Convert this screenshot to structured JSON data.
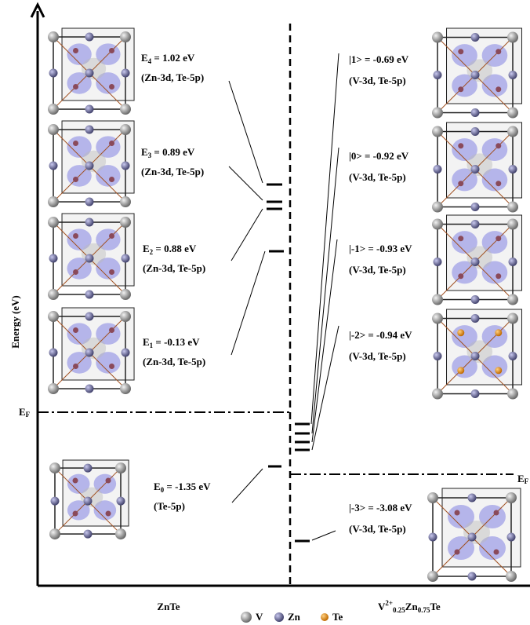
{
  "axis_label": "Energy (eV)",
  "fermi_left": {
    "label": "E",
    "sub": "F"
  },
  "fermi_right": {
    "label": "E",
    "sub": "F"
  },
  "left_levels": [
    {
      "label": "E",
      "sub": "4",
      "value": " = 1.02 eV",
      "orbitals": "(Zn-3d, Te-5p)"
    },
    {
      "label": "E",
      "sub": "3",
      "value": " = 0.89 eV",
      "orbitals": "(Zn-3d, Te-5p)"
    },
    {
      "label": "E",
      "sub": "2",
      "value": " = 0.88 eV",
      "orbitals": "(Zn-3d, Te-5p)"
    },
    {
      "label": "E",
      "sub": "1",
      "value": " = -0.13 eV",
      "orbitals": "(Zn-3d, Te-5p)"
    },
    {
      "label": "E",
      "sub": "0",
      "value": " = -1.35 eV",
      "orbitals": "(Te-5p)"
    }
  ],
  "right_levels": [
    {
      "label": "|1> = -0.69 eV",
      "orbitals": "(V-3d, Te-5p)"
    },
    {
      "label": "|0> = -0.92 eV",
      "orbitals": "(V-3d, Te-5p)"
    },
    {
      "label": "|-1> = -0.93 eV",
      "orbitals": "(V-3d, Te-5p)"
    },
    {
      "label": "|-2> = -0.94 eV",
      "orbitals": "(V-3d, Te-5p)"
    },
    {
      "label": "|-3> = -3.08 eV",
      "orbitals": "(V-3d, Te-5p)"
    }
  ],
  "left_name": "ZnTe",
  "right_name": {
    "base1": "V",
    "sup": "2+",
    "sub1": "0.25",
    "base2": "Zn",
    "sub2": "0.75",
    "base3": "Te"
  },
  "legend": [
    "V",
    "Zn",
    "Te"
  ]
}
